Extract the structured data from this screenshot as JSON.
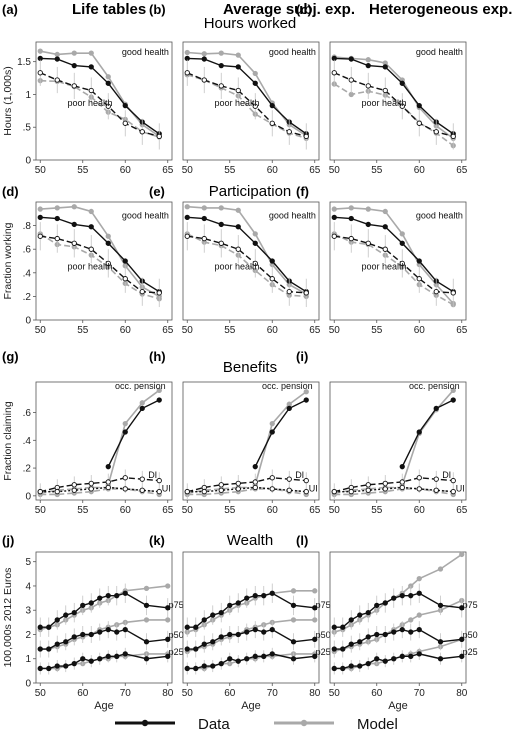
{
  "columns": [
    {
      "letter_suffix": "",
      "title": "Life tables"
    },
    {
      "title": "Average subj. exp."
    },
    {
      "title": "Heterogeneous exp."
    }
  ],
  "rows": [
    {
      "title": "Hours worked",
      "letters": [
        "(a)",
        "(b)",
        "(c)"
      ],
      "ylabel": "Hours (1,000s)",
      "xlabel": ""
    },
    {
      "title": "Participation",
      "letters": [
        "(d)",
        "(e)",
        "(f)"
      ],
      "ylabel": "Fraction working",
      "xlabel": ""
    },
    {
      "title": "Benefits",
      "letters": [
        "(g)",
        "(h)",
        "(i)"
      ],
      "ylabel": "Fraction claiming",
      "xlabel": ""
    },
    {
      "title": "Wealth",
      "letters": [
        "(j)",
        "(k)",
        "(l)"
      ],
      "ylabel": "100,000s 2012 Euros",
      "xlabel": "Age"
    }
  ],
  "legend": {
    "items": [
      {
        "label": "Data",
        "color": "#111111"
      },
      {
        "label": "Model",
        "color": "#a9a9a9"
      }
    ]
  },
  "colors": {
    "data": "#111111",
    "model": "#a9a9a9"
  },
  "chart_data": [
    {
      "type": "line",
      "panel": "hours",
      "x": [
        50,
        52,
        54,
        56,
        58,
        60,
        62,
        64
      ],
      "xlim": [
        49.5,
        65.5
      ],
      "xticks": [
        50,
        55,
        60,
        65
      ],
      "ylim": [
        0,
        1.8
      ],
      "yticks": [
        {
          "v": 0,
          "t": "0"
        },
        {
          "v": 0.5,
          "t": ".5"
        },
        {
          "v": 1,
          "t": "1"
        },
        {
          "v": 1.5,
          "t": "1.5"
        }
      ],
      "annotations": [
        {
          "text": "good health",
          "x": 59.6,
          "y": 1.6
        },
        {
          "text": "poor health",
          "x": 53.2,
          "y": 0.82
        }
      ],
      "data_series": [
        {
          "values": [
            1.55,
            1.54,
            1.44,
            1.42,
            1.17,
            0.83,
            0.58,
            0.4
          ],
          "dash": false,
          "err": 0
        },
        {
          "values": [
            1.33,
            1.22,
            1.13,
            1.06,
            0.82,
            0.56,
            0.43,
            0.36
          ],
          "dash": true,
          "err": 0.2
        }
      ],
      "model_by_column": [
        [
          {
            "values": [
              1.66,
              1.61,
              1.63,
              1.63,
              1.27,
              0.85,
              0.54,
              0.36
            ],
            "dash": false
          },
          {
            "values": [
              1.21,
              1.2,
              1.12,
              0.96,
              0.73,
              0.62,
              0.43,
              0.35
            ],
            "dash": true
          }
        ],
        [
          {
            "values": [
              1.64,
              1.62,
              1.63,
              1.6,
              1.32,
              0.87,
              0.54,
              0.37
            ],
            "dash": false
          },
          {
            "values": [
              1.3,
              1.22,
              1.1,
              0.98,
              0.7,
              0.55,
              0.41,
              0.33
            ],
            "dash": true
          }
        ],
        [
          {
            "values": [
              1.57,
              1.55,
              1.53,
              1.48,
              1.22,
              0.8,
              0.52,
              0.33
            ],
            "dash": false
          },
          {
            "values": [
              1.16,
              1.0,
              1.05,
              0.99,
              0.83,
              0.57,
              0.41,
              0.22
            ],
            "dash": true
          }
        ]
      ]
    },
    {
      "type": "line",
      "panel": "participation",
      "x": [
        50,
        52,
        54,
        56,
        58,
        60,
        62,
        64
      ],
      "xlim": [
        49.5,
        65.5
      ],
      "xticks": [
        50,
        55,
        60,
        65
      ],
      "ylim": [
        0,
        1.0
      ],
      "yticks": [
        {
          "v": 0,
          "t": "0"
        },
        {
          "v": 0.2,
          "t": ".2"
        },
        {
          "v": 0.4,
          "t": ".4"
        },
        {
          "v": 0.6,
          "t": ".6"
        },
        {
          "v": 0.8,
          "t": ".8"
        }
      ],
      "annotations": [
        {
          "text": "good health",
          "x": 59.6,
          "y": 0.86
        },
        {
          "text": "poor health",
          "x": 53.2,
          "y": 0.43
        }
      ],
      "data_series": [
        {
          "values": [
            0.87,
            0.86,
            0.81,
            0.79,
            0.65,
            0.5,
            0.33,
            0.24
          ],
          "dash": false,
          "err": 0
        },
        {
          "values": [
            0.71,
            0.69,
            0.65,
            0.6,
            0.48,
            0.35,
            0.24,
            0.23
          ],
          "dash": true,
          "err": 0.12
        }
      ],
      "model_by_column": [
        [
          {
            "values": [
              0.94,
              0.95,
              0.96,
              0.92,
              0.71,
              0.46,
              0.28,
              0.2
            ],
            "dash": false
          },
          {
            "values": [
              0.73,
              0.64,
              0.62,
              0.55,
              0.45,
              0.31,
              0.22,
              0.18
            ],
            "dash": true
          }
        ],
        [
          {
            "values": [
              0.96,
              0.95,
              0.95,
              0.93,
              0.73,
              0.47,
              0.3,
              0.22
            ],
            "dash": false
          },
          {
            "values": [
              0.73,
              0.66,
              0.63,
              0.55,
              0.42,
              0.3,
              0.21,
              0.2
            ],
            "dash": true
          }
        ],
        [
          {
            "values": [
              0.94,
              0.95,
              0.94,
              0.92,
              0.73,
              0.47,
              0.3,
              0.14
            ],
            "dash": false
          },
          {
            "values": [
              0.73,
              0.66,
              0.64,
              0.55,
              0.45,
              0.3,
              0.21,
              0.13
            ],
            "dash": true
          }
        ]
      ]
    },
    {
      "type": "line",
      "panel": "benefits",
      "x": [
        50,
        52,
        54,
        56,
        58,
        60,
        62,
        64
      ],
      "xlim": [
        49.5,
        65.5
      ],
      "xticks": [
        50,
        55,
        60,
        65
      ],
      "ylim": [
        -0.03,
        0.82
      ],
      "yticks": [
        {
          "v": 0,
          "t": "0"
        },
        {
          "v": 0.2,
          "t": ".2"
        },
        {
          "v": 0.4,
          "t": ".4"
        },
        {
          "v": 0.6,
          "t": ".6"
        }
      ],
      "annotations": [
        {
          "text": "occ. pension",
          "x": 58.8,
          "y": 0.77
        },
        {
          "text": "DI",
          "x": 62.7,
          "y": 0.13
        },
        {
          "text": "UI",
          "x": 64.3,
          "y": 0.03
        }
      ],
      "data_series": [
        {
          "x": [
            58,
            60,
            62,
            64
          ],
          "values": [
            0.21,
            0.46,
            0.63,
            0.69
          ],
          "dash": false,
          "err": 0
        },
        {
          "values": [
            0.03,
            0.06,
            0.08,
            0.09,
            0.1,
            0.13,
            0.12,
            0.11
          ],
          "dash": true,
          "err": 0.06
        },
        {
          "values": [
            0.03,
            0.03,
            0.04,
            0.05,
            0.06,
            0.05,
            0.04,
            0.03
          ],
          "dash": true,
          "dot": true,
          "err": 0.03
        }
      ],
      "model_by_column": [
        [
          {
            "x": [
              58,
              60,
              62,
              64
            ],
            "values": [
              0.08,
              0.52,
              0.67,
              0.76
            ],
            "dash": false
          },
          {
            "values": [
              0.02,
              0.04,
              0.05,
              0.06,
              0.06,
              0.05,
              0.04,
              0.03
            ],
            "dash": true
          },
          {
            "values": [
              0.01,
              0.01,
              0.02,
              0.03,
              0.05,
              0.05,
              0.03,
              0.01
            ],
            "dash": true
          }
        ],
        [
          {
            "x": [
              58,
              60,
              62,
              64
            ],
            "values": [
              0.08,
              0.52,
              0.66,
              0.75
            ],
            "dash": false
          },
          {
            "values": [
              0.02,
              0.04,
              0.05,
              0.06,
              0.06,
              0.05,
              0.04,
              0.03
            ],
            "dash": true
          },
          {
            "values": [
              0.01,
              0.01,
              0.02,
              0.03,
              0.05,
              0.05,
              0.03,
              0.01
            ],
            "dash": true
          }
        ],
        [
          {
            "x": [
              58,
              60,
              62,
              64
            ],
            "values": [
              0.08,
              0.45,
              0.62,
              0.76
            ],
            "dash": false
          },
          {
            "values": [
              0.02,
              0.04,
              0.05,
              0.06,
              0.06,
              0.05,
              0.04,
              0.03
            ],
            "dash": true
          },
          {
            "values": [
              0.01,
              0.01,
              0.02,
              0.03,
              0.05,
              0.05,
              0.03,
              0.01
            ],
            "dash": true
          }
        ]
      ]
    },
    {
      "type": "line",
      "panel": "wealth",
      "x": [
        50,
        52,
        54,
        56,
        58,
        60,
        62,
        64,
        66,
        68,
        70,
        75,
        80
      ],
      "xlim": [
        49,
        81
      ],
      "xticks": [
        50,
        60,
        70,
        80
      ],
      "ylim": [
        0,
        5.4
      ],
      "yticks": [
        {
          "v": 0,
          "t": "0"
        },
        {
          "v": 1,
          "t": "1"
        },
        {
          "v": 2,
          "t": "2"
        },
        {
          "v": 3,
          "t": "3"
        },
        {
          "v": 4,
          "t": "4"
        },
        {
          "v": 5,
          "t": "5"
        }
      ],
      "annotations": [
        {
          "text": "p75",
          "x": 80.2,
          "y": 3.1
        },
        {
          "text": "p50",
          "x": 80.2,
          "y": 1.85
        },
        {
          "text": "p25",
          "x": 80.2,
          "y": 1.15
        }
      ],
      "data_series": [
        {
          "values": [
            2.3,
            2.3,
            2.6,
            2.8,
            2.9,
            3.2,
            3.3,
            3.5,
            3.6,
            3.6,
            3.7,
            3.2,
            3.1
          ],
          "dash": false,
          "err": 0.4
        },
        {
          "values": [
            1.4,
            1.4,
            1.6,
            1.7,
            1.9,
            2.0,
            2.0,
            2.1,
            2.2,
            2.1,
            2.2,
            1.7,
            1.8
          ],
          "dash": false,
          "err": 0.35
        },
        {
          "values": [
            0.6,
            0.6,
            0.7,
            0.7,
            0.8,
            1.0,
            0.9,
            1.0,
            1.1,
            1.1,
            1.2,
            1.0,
            1.1
          ],
          "dash": false,
          "err": 0.25
        }
      ],
      "model_by_column": [
        [
          {
            "values": [
              2.2,
              2.3,
              2.4,
              2.6,
              2.8,
              3.0,
              3.1,
              3.3,
              3.4,
              3.6,
              3.8,
              3.9,
              4.0
            ],
            "dash": false
          },
          {
            "values": [
              1.4,
              1.4,
              1.5,
              1.6,
              1.8,
              1.9,
              2.0,
              2.2,
              2.3,
              2.4,
              2.5,
              2.6,
              2.6
            ],
            "dash": false
          },
          {
            "values": [
              0.6,
              0.6,
              0.6,
              0.7,
              0.8,
              0.8,
              0.9,
              1.0,
              1.0,
              1.1,
              1.1,
              1.2,
              1.2
            ],
            "dash": false
          }
        ],
        [
          {
            "values": [
              2.1,
              2.2,
              2.4,
              2.6,
              2.8,
              3.0,
              3.2,
              3.3,
              3.5,
              3.6,
              3.7,
              3.8,
              3.8
            ],
            "dash": false
          },
          {
            "values": [
              1.3,
              1.4,
              1.5,
              1.6,
              1.8,
              1.9,
              2.0,
              2.2,
              2.3,
              2.4,
              2.5,
              2.6,
              2.6
            ],
            "dash": false
          },
          {
            "values": [
              0.6,
              0.6,
              0.6,
              0.7,
              0.8,
              0.8,
              0.9,
              1.0,
              1.0,
              1.1,
              1.1,
              1.2,
              1.2
            ],
            "dash": false
          }
        ],
        [
          {
            "values": [
              2.1,
              2.2,
              2.4,
              2.6,
              2.8,
              3.0,
              3.3,
              3.5,
              3.7,
              4.0,
              4.3,
              4.7,
              5.3
            ],
            "dash": false
          },
          {
            "values": [
              1.3,
              1.4,
              1.5,
              1.6,
              1.7,
              1.8,
              2.0,
              2.2,
              2.4,
              2.6,
              2.8,
              3.0,
              3.4
            ],
            "dash": false
          },
          {
            "values": [
              0.6,
              0.6,
              0.6,
              0.7,
              0.8,
              0.8,
              0.9,
              1.0,
              1.1,
              1.2,
              1.3,
              1.5,
              1.8
            ],
            "dash": false
          }
        ]
      ]
    }
  ]
}
